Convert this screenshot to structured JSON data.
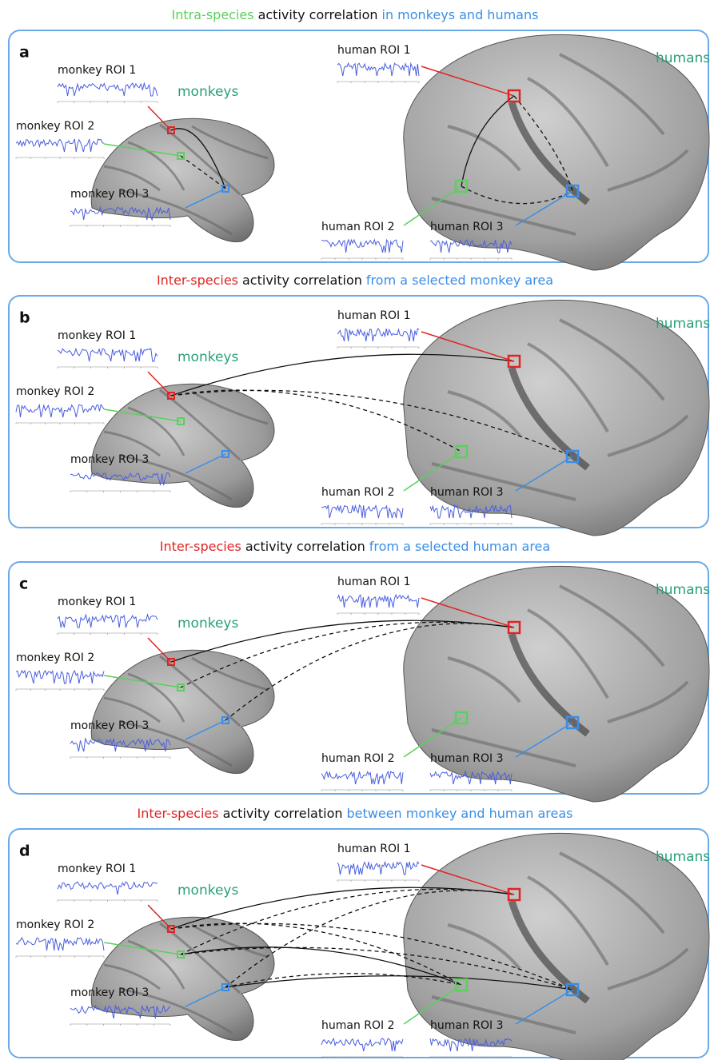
{
  "figure": {
    "panels": [
      {
        "letter": "a",
        "title": {
          "species": "Intra-species",
          "middle": "activity correlation",
          "rest": "in monkeys and humans"
        },
        "monkeys_label": "monkeys",
        "humans_label": "humans",
        "monkey_rois": [
          "monkey ROI 1",
          "monkey ROI 2",
          "monkey ROI 3"
        ],
        "human_rois": [
          "human ROI 1",
          "human ROI 2",
          "human ROI 3"
        ]
      },
      {
        "letter": "b",
        "title": {
          "species": "Inter-species",
          "middle": "activity correlation",
          "rest": "from a selected monkey area"
        },
        "monkeys_label": "monkeys",
        "humans_label": "humans",
        "monkey_rois": [
          "monkey ROI 1",
          "monkey ROI 2",
          "monkey ROI 3"
        ],
        "human_rois": [
          "human ROI 1",
          "human ROI 2",
          "human ROI 3"
        ]
      },
      {
        "letter": "c",
        "title": {
          "species": "Inter-species",
          "middle": "activity correlation",
          "rest": "from a selected human area"
        },
        "monkeys_label": "monkeys",
        "humans_label": "humans",
        "monkey_rois": [
          "monkey ROI 1",
          "monkey ROI 2",
          "monkey ROI 3"
        ],
        "human_rois": [
          "human ROI 1",
          "human ROI 2",
          "human ROI 3"
        ]
      },
      {
        "letter": "d",
        "title": {
          "species": "Inter-species",
          "middle": "activity correlation",
          "rest": "between monkey and human areas"
        },
        "monkeys_label": "monkeys",
        "humans_label": "humans",
        "monkey_rois": [
          "monkey ROI 1",
          "monkey ROI 2",
          "monkey ROI 3"
        ],
        "human_rois": [
          "human ROI 1",
          "human ROI 2",
          "human ROI 3"
        ]
      }
    ]
  }
}
